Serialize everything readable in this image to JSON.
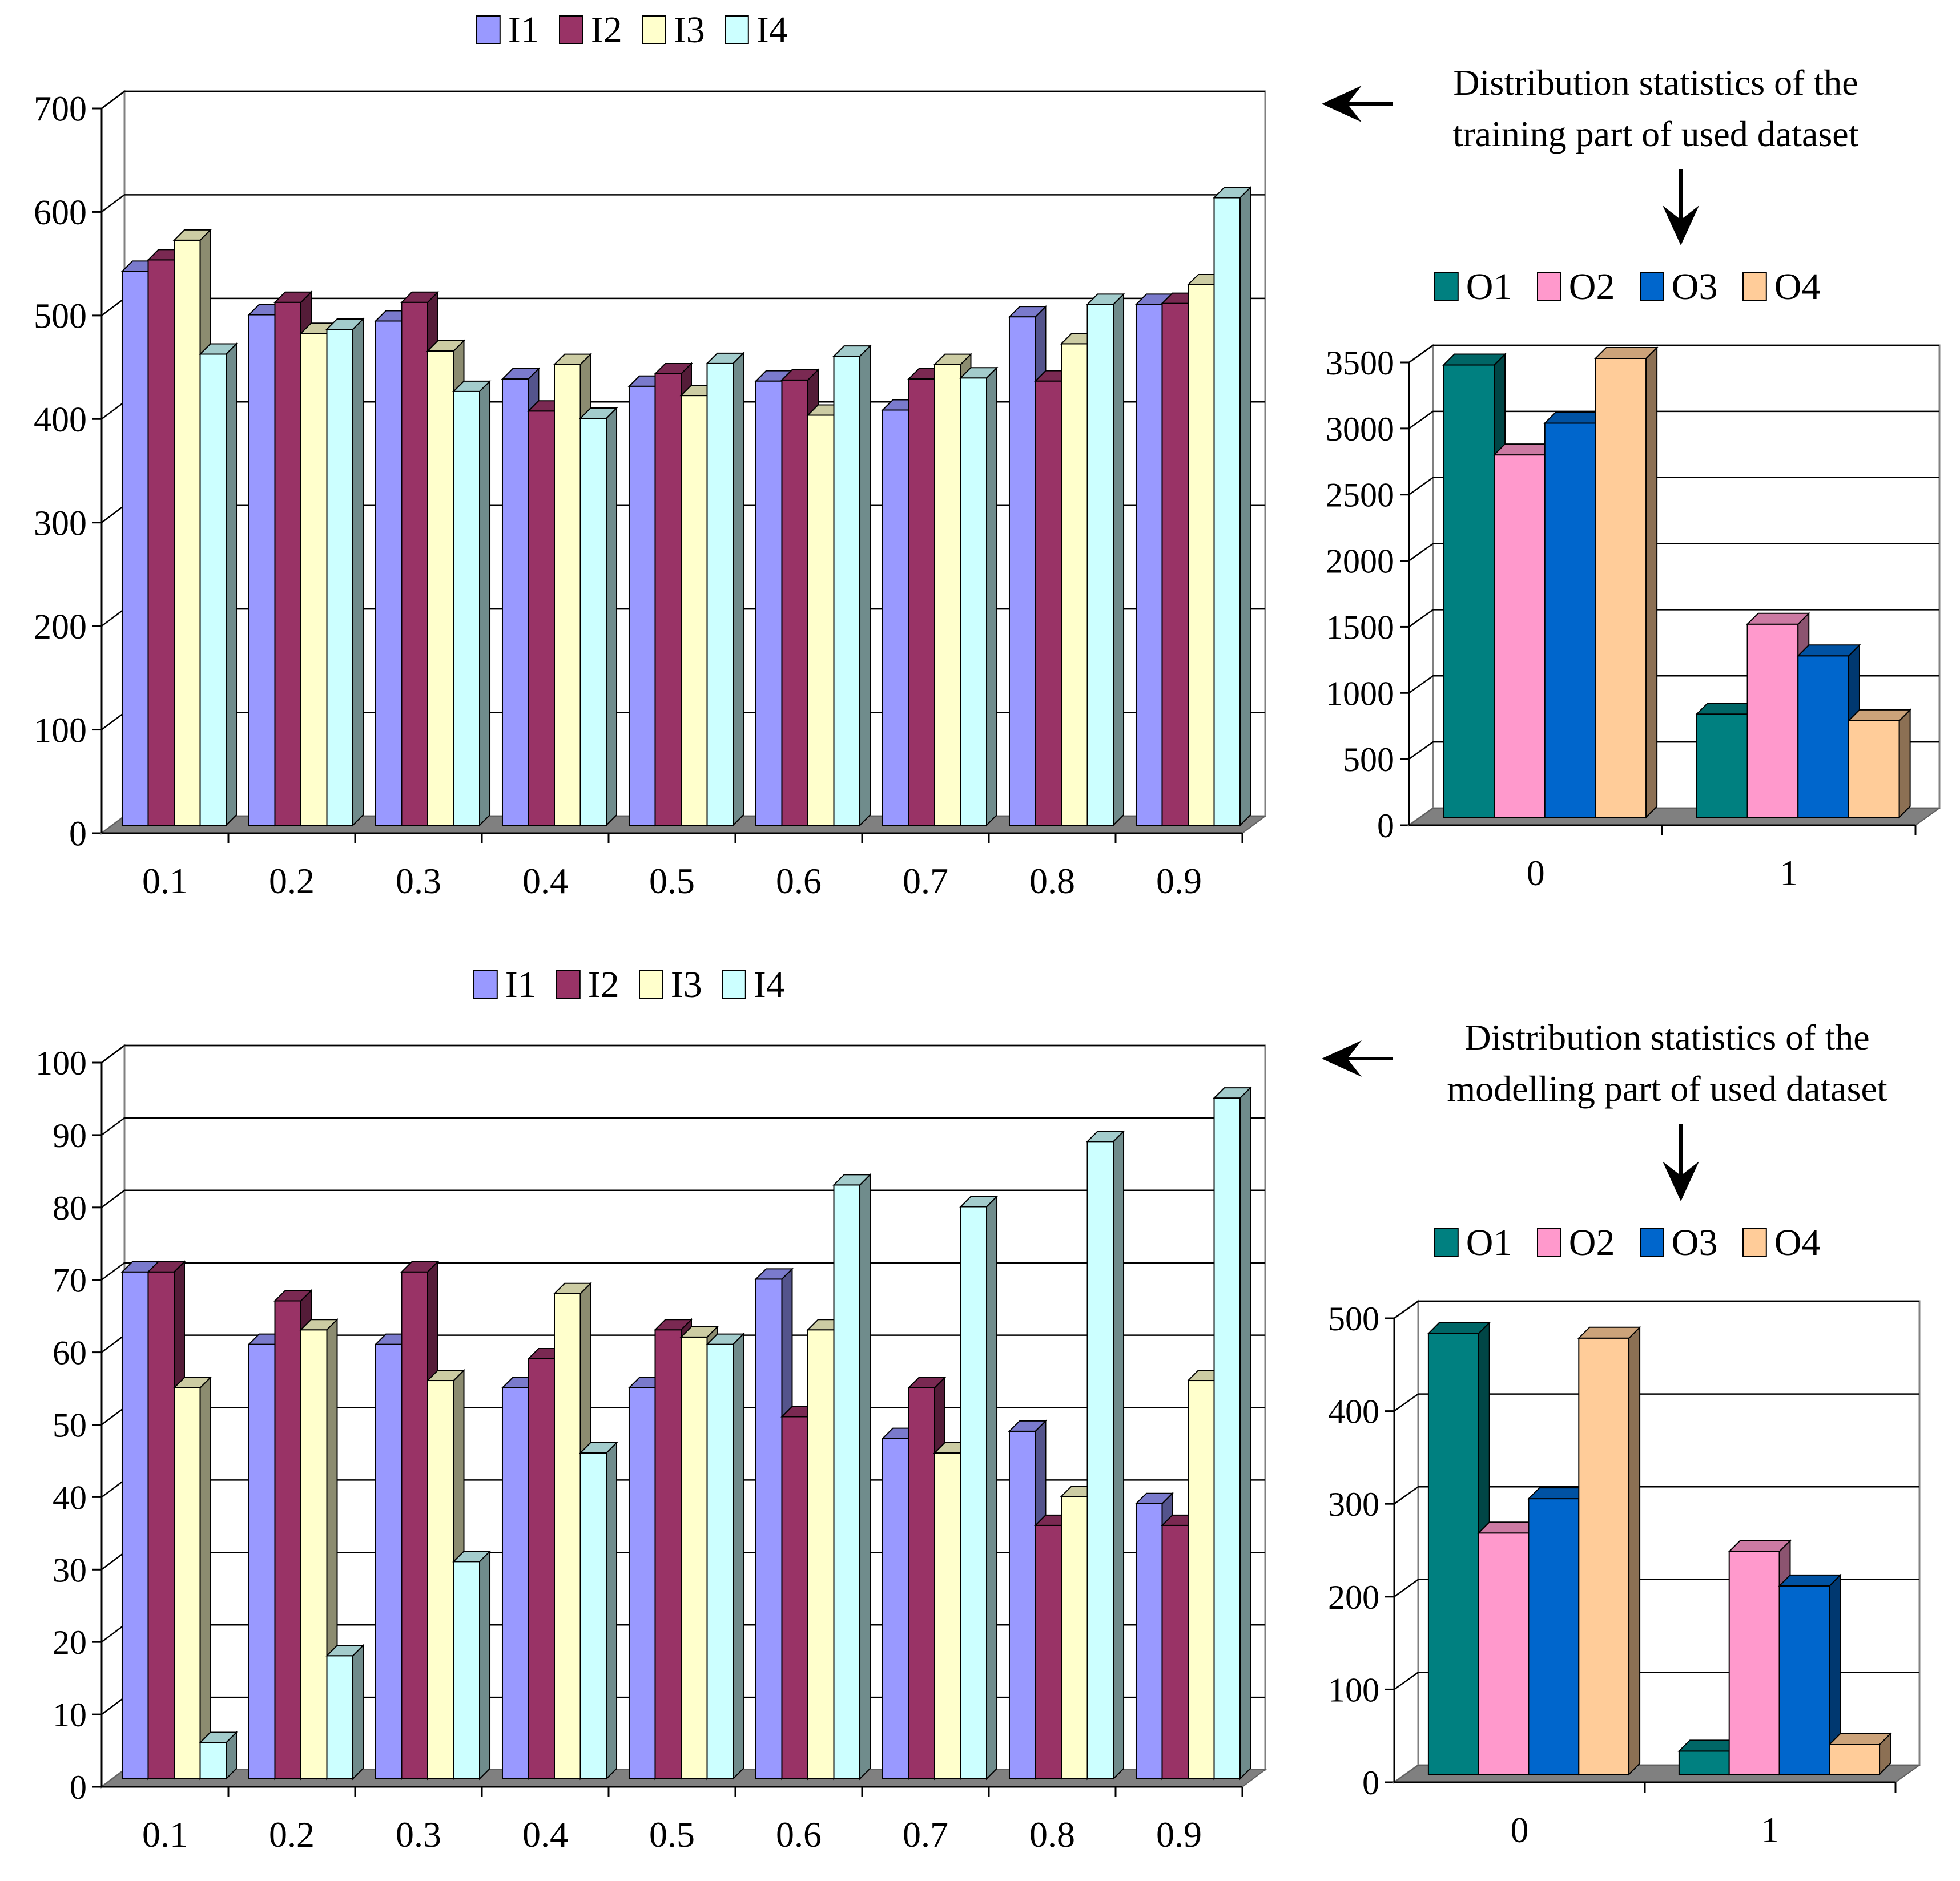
{
  "palette": {
    "I1": "#9999ff",
    "I2": "#993366",
    "I3": "#ffffcc",
    "I4": "#ccffff",
    "O1": "#008080",
    "O2": "#ff99cc",
    "O3": "#0066cc",
    "O4": "#ffcc99",
    "gridline": "#000000",
    "floor": "#808080",
    "background": "#ffffff"
  },
  "annotations": {
    "training": {
      "line1": "Distribution statistics of the",
      "line2": "training part of used dataset",
      "arrow_left": "←",
      "arrow_down": "↓"
    },
    "modelling": {
      "line1": "Distribution statistics of the",
      "line2": "modelling part of used dataset",
      "arrow_left": "←",
      "arrow_down": "↓"
    }
  },
  "chart_data": [
    {
      "id": "training-inputs",
      "type": "bar",
      "title": "",
      "xlabel": "",
      "ylabel": "",
      "categories": [
        "0.1",
        "0.2",
        "0.3",
        "0.4",
        "0.5",
        "0.6",
        "0.7",
        "0.8",
        "0.9"
      ],
      "series": [
        {
          "name": "I1",
          "values": [
            535,
            493,
            487,
            431,
            424,
            429,
            401,
            491,
            503
          ]
        },
        {
          "name": "I2",
          "values": [
            546,
            505,
            505,
            400,
            436,
            430,
            431,
            429,
            504
          ]
        },
        {
          "name": "I3",
          "values": [
            565,
            475,
            458,
            445,
            415,
            396,
            445,
            465,
            522
          ]
        },
        {
          "name": "I4",
          "values": [
            455,
            479,
            419,
            393,
            446,
            453,
            432,
            503,
            606
          ]
        }
      ],
      "ylim": [
        0,
        700
      ],
      "yticks": [
        "0",
        "100",
        "200",
        "300",
        "400",
        "500",
        "600",
        "700"
      ],
      "legend": "top"
    },
    {
      "id": "training-outputs",
      "type": "bar",
      "title": "",
      "xlabel": "",
      "ylabel": "",
      "categories": [
        "0",
        "1"
      ],
      "series": [
        {
          "name": "O1",
          "values": [
            3420,
            780
          ]
        },
        {
          "name": "O2",
          "values": [
            2740,
            1460
          ]
        },
        {
          "name": "O3",
          "values": [
            2980,
            1220
          ]
        },
        {
          "name": "O4",
          "values": [
            3470,
            730
          ]
        }
      ],
      "ylim": [
        0,
        3500
      ],
      "yticks": [
        "0",
        "500",
        "1000",
        "1500",
        "2000",
        "2500",
        "3000",
        "3500"
      ],
      "legend": "top"
    },
    {
      "id": "modelling-inputs",
      "type": "bar",
      "title": "",
      "xlabel": "",
      "ylabel": "",
      "categories": [
        "0.1",
        "0.2",
        "0.3",
        "0.4",
        "0.5",
        "0.6",
        "0.7",
        "0.8",
        "0.9"
      ],
      "series": [
        {
          "name": "I1",
          "values": [
            70,
            60,
            60,
            54,
            54,
            69,
            47,
            48,
            38
          ]
        },
        {
          "name": "I2",
          "values": [
            70,
            66,
            70,
            58,
            62,
            50,
            54,
            35,
            35
          ]
        },
        {
          "name": "I3",
          "values": [
            54,
            62,
            55,
            67,
            61,
            62,
            45,
            39,
            55
          ]
        },
        {
          "name": "I4",
          "values": [
            5,
            17,
            30,
            45,
            60,
            82,
            79,
            88,
            94
          ]
        }
      ],
      "ylim": [
        0,
        100
      ],
      "yticks": [
        "0",
        "10",
        "20",
        "30",
        "40",
        "50",
        "60",
        "70",
        "80",
        "90",
        "100"
      ],
      "legend": "top"
    },
    {
      "id": "modelling-outputs",
      "type": "bar",
      "title": "",
      "xlabel": "",
      "ylabel": "",
      "categories": [
        "0",
        "1"
      ],
      "series": [
        {
          "name": "O1",
          "values": [
            475,
            25
          ]
        },
        {
          "name": "O2",
          "values": [
            260,
            240
          ]
        },
        {
          "name": "O3",
          "values": [
            297,
            203
          ]
        },
        {
          "name": "O4",
          "values": [
            470,
            32
          ]
        }
      ],
      "ylim": [
        0,
        500
      ],
      "yticks": [
        "0",
        "100",
        "200",
        "300",
        "400",
        "500"
      ],
      "legend": "top"
    }
  ]
}
